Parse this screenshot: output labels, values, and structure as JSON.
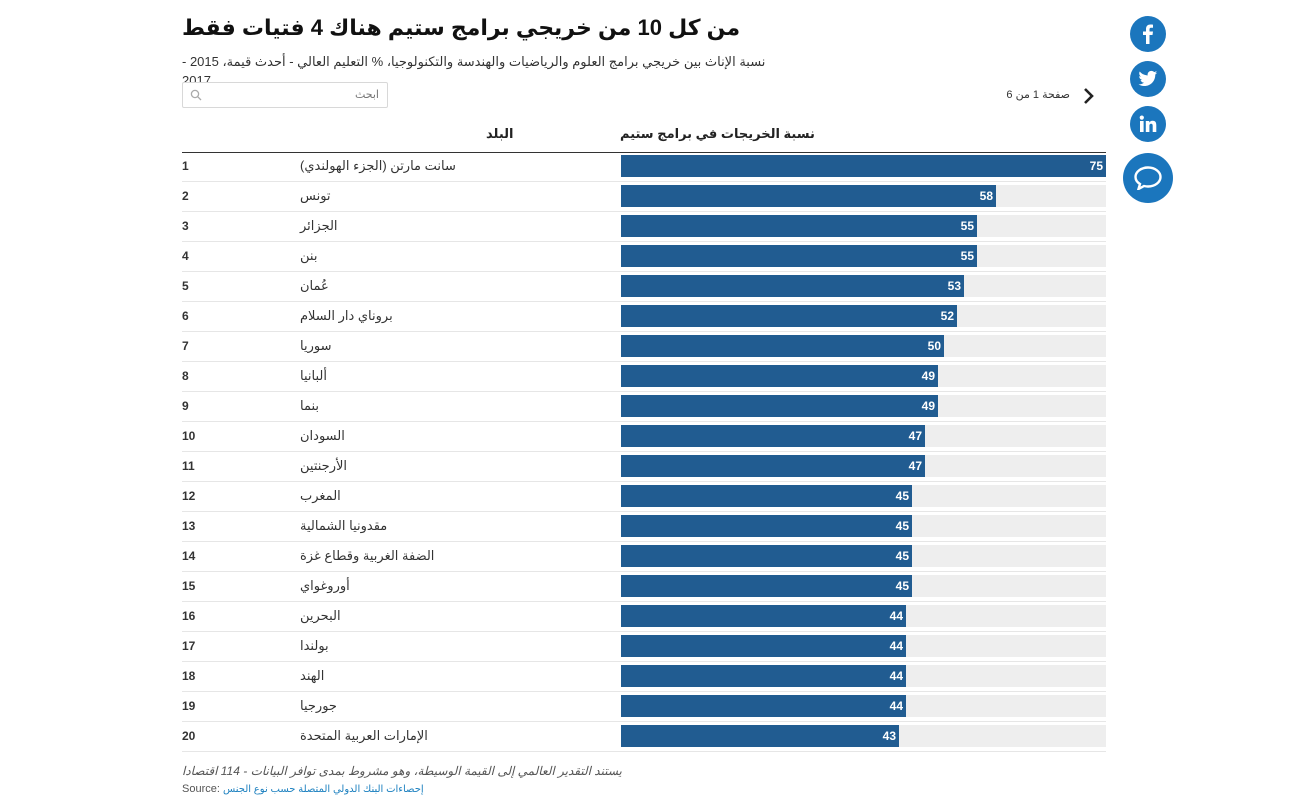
{
  "header": {
    "title": "من كل 10 من خريجي برامج ستيم هناك 4 فتيات فقط",
    "subtitle": "نسبة الإناث بين خريجي برامج العلوم والرياضيات والهندسة والتكنولوجيا، % التعليم العالي - أحدث قيمة، 2015 - 2017"
  },
  "search": {
    "placeholder": "ابحث"
  },
  "pager": {
    "text": "صفحة 1 من 6"
  },
  "table": {
    "col_country": "البلد",
    "col_value": "نسبة الخريجات في برامج ستيم"
  },
  "chart_data": {
    "type": "bar",
    "title": "من كل 10 من خريجي برامج ستيم هناك 4 فتيات فقط",
    "ylabel": "نسبة الخريجات في برامج ستيم",
    "xlabel": "البلد",
    "ylim": [
      0,
      75
    ],
    "ranks": [
      1,
      2,
      3,
      4,
      5,
      6,
      7,
      8,
      9,
      10,
      11,
      12,
      13,
      14,
      15,
      16,
      17,
      18,
      19,
      20
    ],
    "categories": [
      "سانت مارتن (الجزء الهولندي)",
      "تونس",
      "الجزائر",
      "بنن",
      "عُمان",
      "بروناي دار السلام",
      "سوريا",
      "ألبانيا",
      "بنما",
      "السودان",
      "الأرجنتين",
      "المغرب",
      "مقدونيا الشمالية",
      "الضفة الغربية وقطاع غزة",
      "أوروغواي",
      "البحرين",
      "بولندا",
      "الهند",
      "جورجيا",
      "الإمارات العربية المتحدة"
    ],
    "values": [
      75,
      58,
      55,
      55,
      53,
      52,
      50,
      49,
      49,
      47,
      47,
      45,
      45,
      45,
      45,
      44,
      44,
      44,
      44,
      43
    ],
    "bar_color": "#215c91",
    "track_color": "#eeeeee"
  },
  "footer": {
    "note": "يستند التقدير العالمي إلى القيمة الوسيطة، وهو مشروط بمدى توافر البيانات - 114 اقتصادا",
    "source_label": "Source:",
    "source_link": "إحصاءات البنك الدولي المتصلة حسب نوع الجنس"
  },
  "social": {
    "facebook": "facebook-icon",
    "twitter": "twitter-icon",
    "linkedin": "linkedin-icon",
    "comment": "comment-icon",
    "color": "#1b76bd"
  }
}
